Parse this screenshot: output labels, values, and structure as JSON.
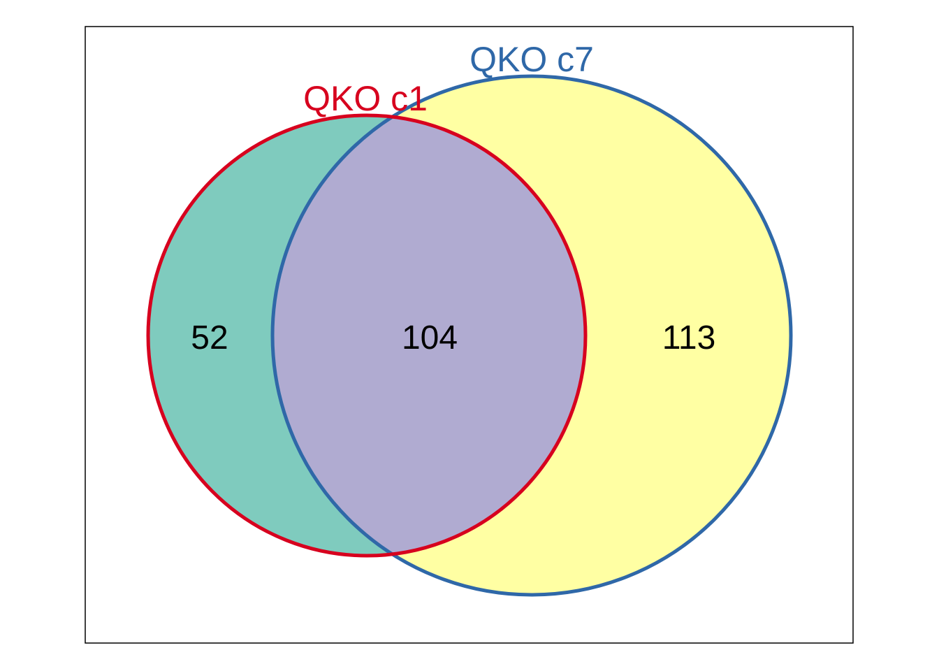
{
  "sets": [
    {
      "name": "QKO_c1",
      "label": "QKO  c1",
      "stroke_color": "#D7001E",
      "fill_color": "#7FCBBE"
    },
    {
      "name": "QKO_c7",
      "label": "QKO  c7",
      "stroke_color": "#2F68A8",
      "fill_color": "#FFFFA3"
    }
  ],
  "overlap_fill_color": "#B0ABD1",
  "counts": {
    "only_c1": "52",
    "both": "104",
    "only_c7": "113"
  }
}
